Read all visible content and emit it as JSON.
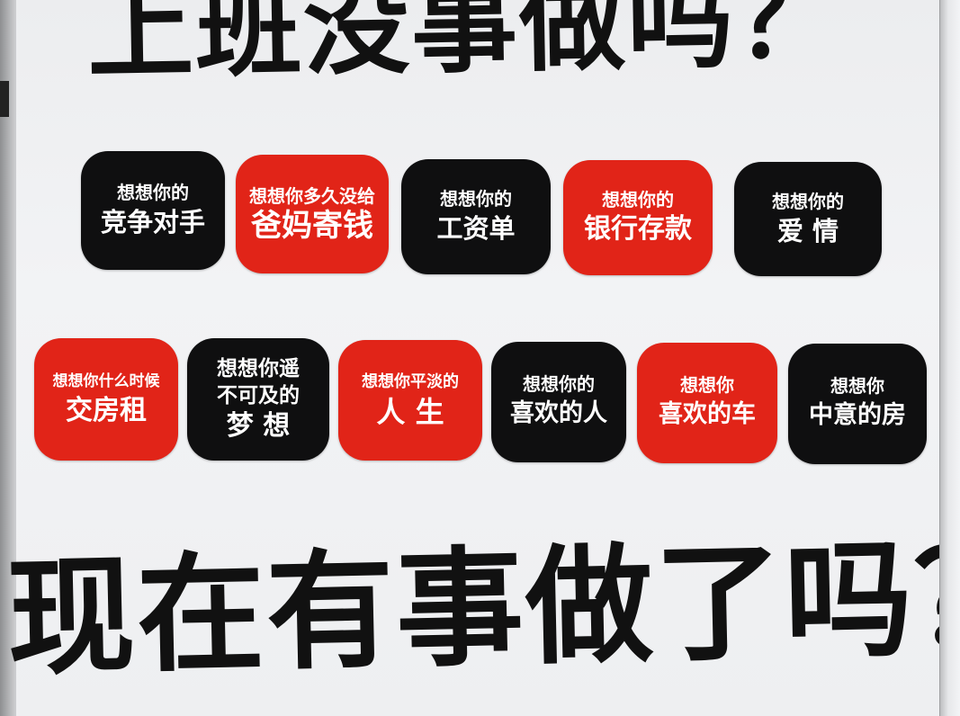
{
  "colors": {
    "tile_black": "#0f0f10",
    "tile_red": "#e12418",
    "board": "#eeeff1",
    "text": "#111111"
  },
  "headline_top": "上班没事做吗？",
  "headline_bottom": "现在有事做了吗？",
  "row1": [
    {
      "line1": "想想你的",
      "line2": "竞争对手",
      "color": "black"
    },
    {
      "line1": "想想你多久没给",
      "line2": "爸妈寄钱",
      "color": "red"
    },
    {
      "line1": "想想你的",
      "line2": "工资单",
      "color": "black"
    },
    {
      "line1": "想想你的",
      "line2": "银行存款",
      "color": "red"
    },
    {
      "line1": "想想你的",
      "line2": "爱 情",
      "color": "black"
    }
  ],
  "row2": [
    {
      "line1": "想想你什么时候",
      "line2": "交房租",
      "color": "red"
    },
    {
      "line1": "想想你遥",
      "line_mid": "不可及的",
      "line2": "梦 想",
      "color": "black"
    },
    {
      "line1": "想想你平淡的",
      "line2": "人 生",
      "color": "red"
    },
    {
      "line1": "想想你的",
      "line2": "喜欢的人",
      "color": "black"
    },
    {
      "line1": "想想你",
      "line2": "喜欢的车",
      "color": "red"
    },
    {
      "line1": "想想你",
      "line2": "中意的房",
      "color": "black"
    }
  ]
}
